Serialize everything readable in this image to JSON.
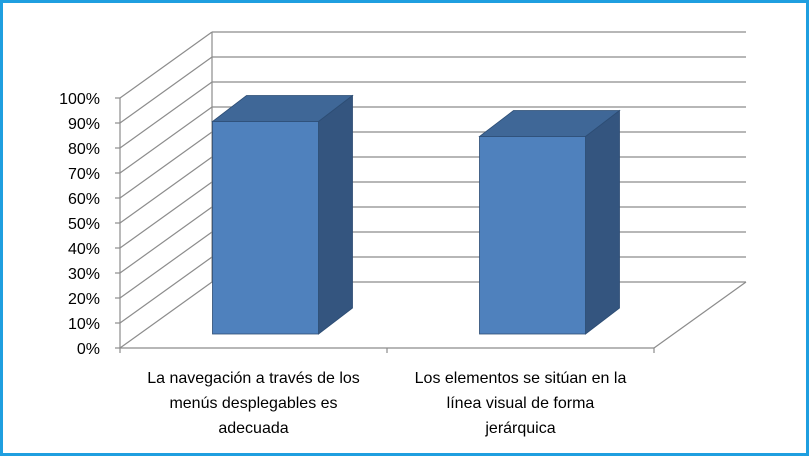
{
  "chart_data": {
    "type": "bar",
    "categories": [
      [
        "La navegación a través de los",
        "menús desplegables es",
        "adecuada"
      ],
      [
        "Los elementos se sitúan en la",
        "línea visual de forma",
        "jerárquica"
      ]
    ],
    "series": [
      {
        "values": [
          0.85,
          0.79
        ]
      }
    ],
    "ylim": [
      0,
      1
    ],
    "yticks": [
      "0%",
      "10%",
      "20%",
      "30%",
      "40%",
      "50%",
      "60%",
      "70%",
      "80%",
      "90%",
      "100%"
    ],
    "grid": true,
    "legend": "none",
    "colors": {
      "bar_front": "#4f81bd",
      "bar_side": "#34557f",
      "bar_top": "#3f6797",
      "bar_edge": "#2d4d74",
      "grid": "#8c8c8c",
      "frame": "#1f9fe0"
    }
  }
}
